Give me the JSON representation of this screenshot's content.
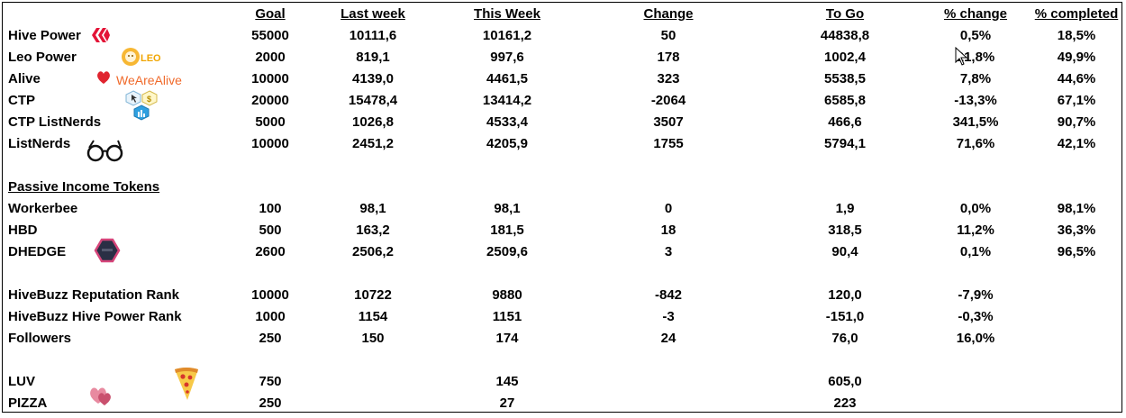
{
  "headers": {
    "goal": "Goal",
    "last_week": "Last week",
    "this_week": "This Week",
    "change": "Change",
    "to_go": "To Go",
    "pct_change": "% change",
    "pct_completed": "% completed"
  },
  "sections": {
    "passive": "Passive Income Tokens"
  },
  "icons": {
    "hive": "hive-logo-icon",
    "leo": "leo-lion-icon",
    "alive_text": "WeAreAlive",
    "alive_heart": "heart-icon",
    "ctp": "ctp-hexagon-icon",
    "listnerds": "glasses-icon",
    "dhedge": "dhedge-hexagon-icon",
    "luv": "luv-hearts-icon",
    "pizza": "pizza-slice-icon",
    "leo_text": "LEO"
  },
  "rows": [
    {
      "label": "Hive Power",
      "goal": "55000",
      "last": "10111,6",
      "this": "10161,2",
      "change": "50",
      "togo": "44838,8",
      "pchange": "0,5%",
      "pdone": "18,5%"
    },
    {
      "label": "Leo Power",
      "goal": "2000",
      "last": "819,1",
      "this": "997,6",
      "change": "178",
      "togo": "1002,4",
      "pchange": "21,8%",
      "pdone": "49,9%"
    },
    {
      "label": "Alive",
      "goal": "10000",
      "last": "4139,0",
      "this": "4461,5",
      "change": "323",
      "togo": "5538,5",
      "pchange": "7,8%",
      "pdone": "44,6%"
    },
    {
      "label": "CTP",
      "goal": "20000",
      "last": "15478,4",
      "this": "13414,2",
      "change": "-2064",
      "togo": "6585,8",
      "pchange": "-13,3%",
      "pdone": "67,1%"
    },
    {
      "label": "CTP ListNerds",
      "goal": "5000",
      "last": "1026,8",
      "this": "4533,4",
      "change": "3507",
      "togo": "466,6",
      "pchange": "341,5%",
      "pdone": "90,7%"
    },
    {
      "label": "ListNerds",
      "goal": "10000",
      "last": "2451,2",
      "this": "4205,9",
      "change": "1755",
      "togo": "5794,1",
      "pchange": "71,6%",
      "pdone": "42,1%"
    },
    {
      "label": "Workerbee",
      "goal": "100",
      "last": "98,1",
      "this": "98,1",
      "change": "0",
      "togo": "1,9",
      "pchange": "0,0%",
      "pdone": "98,1%"
    },
    {
      "label": "HBD",
      "goal": "500",
      "last": "163,2",
      "this": "181,5",
      "change": "18",
      "togo": "318,5",
      "pchange": "11,2%",
      "pdone": "36,3%"
    },
    {
      "label": "DHEDGE",
      "goal": "2600",
      "last": "2506,2",
      "this": "2509,6",
      "change": "3",
      "togo": "90,4",
      "pchange": "0,1%",
      "pdone": "96,5%"
    },
    {
      "label": "HiveBuzz Reputation Rank",
      "goal": "10000",
      "last": "10722",
      "this": "9880",
      "change": "-842",
      "togo": "120,0",
      "pchange": "-7,9%",
      "pdone": ""
    },
    {
      "label": "HiveBuzz Hive Power Rank",
      "goal": "1000",
      "last": "1154",
      "this": "1151",
      "change": "-3",
      "togo": "-151,0",
      "pchange": "-0,3%",
      "pdone": ""
    },
    {
      "label": "Followers",
      "goal": "250",
      "last": "150",
      "this": "174",
      "change": "24",
      "togo": "76,0",
      "pchange": "16,0%",
      "pdone": ""
    },
    {
      "label": "LUV",
      "goal": "750",
      "last": "",
      "this": "145",
      "change": "",
      "togo": "605,0",
      "pchange": "",
      "pdone": ""
    },
    {
      "label": "PIZZA",
      "goal": "250",
      "last": "",
      "this": "27",
      "change": "",
      "togo": "223",
      "pchange": "",
      "pdone": ""
    }
  ]
}
